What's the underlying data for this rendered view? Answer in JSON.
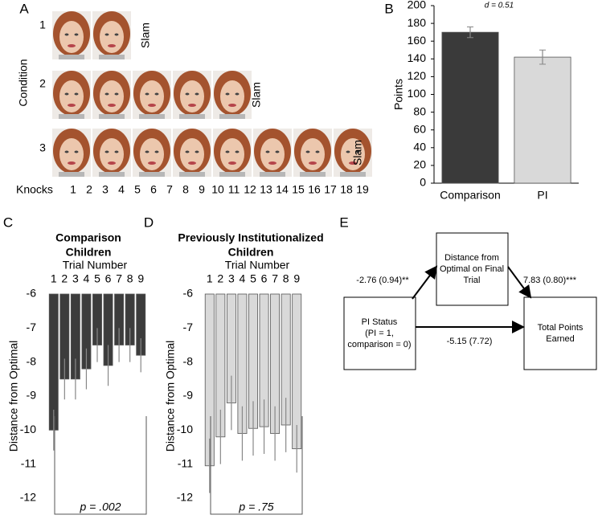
{
  "panel_a": {
    "letter": "A",
    "y_label": "Condition",
    "x_label": "Knocks",
    "rows": [
      {
        "label": "1",
        "end": "Slam"
      },
      {
        "label": "2",
        "end": "Slam"
      },
      {
        "label": "3",
        "end": "Slam"
      }
    ],
    "knocks": [
      "1",
      "2",
      "3",
      "4",
      "5",
      "6",
      "7",
      "8",
      "9",
      "10",
      "11",
      "12",
      "13",
      "14",
      "15",
      "16",
      "17",
      "18",
      "19"
    ]
  },
  "chart_data": [
    {
      "letter": "B",
      "type": "bar",
      "annotation": "d = 0.51",
      "ylabel": "Points",
      "categories": [
        "Comparison",
        "PI"
      ],
      "values": [
        170,
        142
      ],
      "errors": [
        6,
        8
      ],
      "colors": [
        "#3a3a3a",
        "#d9d9d9"
      ],
      "ylim": [
        0,
        200
      ],
      "yticks": [
        0,
        20,
        40,
        60,
        80,
        100,
        120,
        140,
        160,
        180,
        200
      ]
    },
    {
      "letter": "C",
      "type": "bar",
      "title": [
        "Comparison",
        "Children"
      ],
      "xlabel": "Trial Number",
      "ylabel": "Distance from Optimal",
      "categories": [
        "1",
        "2",
        "3",
        "4",
        "5",
        "6",
        "7",
        "8",
        "9"
      ],
      "values": [
        -10.0,
        -8.5,
        -8.5,
        -8.2,
        -7.5,
        -8.1,
        -7.5,
        -7.5,
        -7.8
      ],
      "errors": [
        0.6,
        0.6,
        0.6,
        0.6,
        0.5,
        0.6,
        0.5,
        0.5,
        0.5
      ],
      "color": "#3c3c3c",
      "ylim": [
        -12,
        -6
      ],
      "yticks": [
        -6,
        -7,
        -8,
        -9,
        -10,
        -11,
        -12
      ],
      "annotation": "p = .002"
    },
    {
      "letter": "D",
      "type": "bar",
      "title": [
        "Previously Institutionalized",
        "Children"
      ],
      "xlabel": "Trial Number",
      "ylabel": "Distance from Optimal",
      "categories": [
        "1",
        "2",
        "3",
        "4",
        "5",
        "6",
        "7",
        "8",
        "9"
      ],
      "values": [
        -11.05,
        -10.2,
        -9.2,
        -10.1,
        -9.95,
        -9.9,
        -10.1,
        -9.85,
        -10.55
      ],
      "errors": [
        0.8,
        0.8,
        0.8,
        0.8,
        0.8,
        0.8,
        0.8,
        0.8,
        0.7
      ],
      "color": "#d9d9d9",
      "ylim": [
        -12,
        -6
      ],
      "yticks": [
        -6,
        -7,
        -8,
        -9,
        -10,
        -11,
        -12
      ],
      "annotation": "p = .75"
    }
  ],
  "panel_e": {
    "letter": "E",
    "nodes": [
      {
        "lines": [
          "PI Status",
          "(PI = 1,",
          "comparison = 0)"
        ]
      },
      {
        "lines": [
          "Distance from",
          "Optimal on Final",
          "Trial"
        ]
      },
      {
        "lines": [
          "Total Points",
          "Earned"
        ]
      }
    ],
    "edges": [
      {
        "label": "-2.76 (0.94)**"
      },
      {
        "label": "7.83 (0.80)***"
      },
      {
        "label": "-5.15 (7.72)"
      }
    ]
  }
}
